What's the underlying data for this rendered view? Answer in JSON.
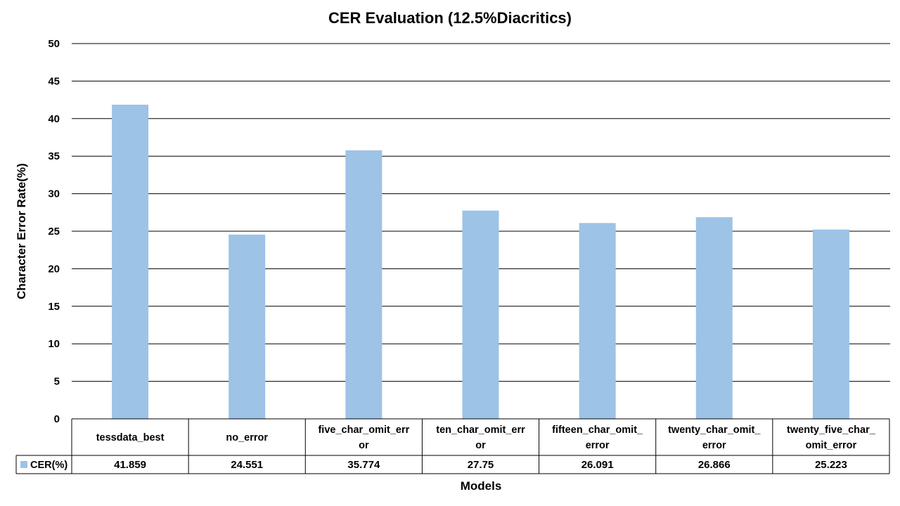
{
  "chart_data": {
    "type": "bar",
    "title": "CER Evaluation (12.5%Diacritics)",
    "xlabel": "Models",
    "ylabel": "Character Error Rate(%)",
    "ylim": [
      0,
      50
    ],
    "ytick_step": 5,
    "grid": true,
    "data_table": true,
    "categories": [
      [
        "tessdata_best"
      ],
      [
        "no_error"
      ],
      [
        "five_char_omit_err",
        "or"
      ],
      [
        "ten_char_omit_err",
        "or"
      ],
      [
        "fifteen_char_omit_",
        "error"
      ],
      [
        "twenty_char_omit_",
        "error"
      ],
      [
        "twenty_five_char_",
        "omit_error"
      ]
    ],
    "series": [
      {
        "name": "CER(%)",
        "color": "#9dc3e6",
        "values": [
          41.859,
          24.551,
          35.774,
          27.75,
          26.091,
          26.866,
          25.223
        ]
      }
    ]
  }
}
